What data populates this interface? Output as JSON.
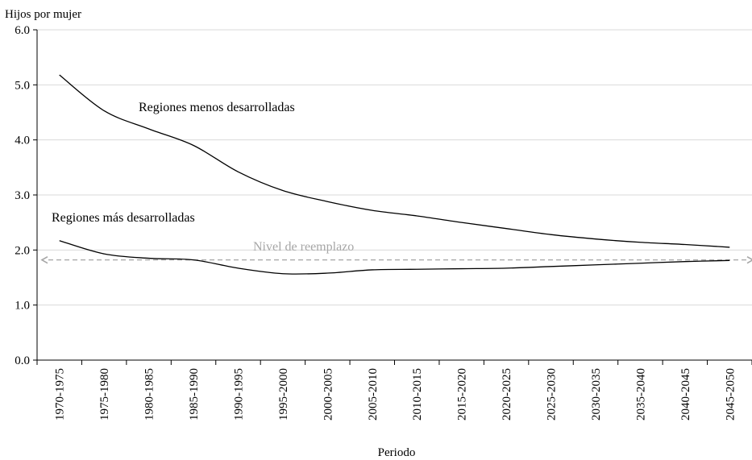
{
  "chart_data": {
    "type": "line",
    "ylabel": "Hijos por mujer",
    "xlabel": "Periodo",
    "ylim": [
      0,
      6
    ],
    "yticks": [
      "0.0",
      "1.0",
      "2.0",
      "3.0",
      "4.0",
      "5.0",
      "6.0"
    ],
    "grid": true,
    "categories": [
      "1970-1975",
      "1975-1980",
      "1980-1985",
      "1985-1990",
      "1990-1995",
      "1995-2000",
      "2000-2005",
      "2005-2010",
      "2010-2015",
      "2015-2020",
      "2020-2025",
      "2025-2030",
      "2030-2035",
      "2035-2040",
      "2040-2045",
      "2045-2050"
    ],
    "series": [
      {
        "name": "Regiones menos desarrolladas",
        "color": "#000000",
        "values": [
          5.18,
          4.53,
          4.2,
          3.9,
          3.42,
          3.08,
          2.88,
          2.72,
          2.62,
          2.5,
          2.39,
          2.28,
          2.2,
          2.14,
          2.1,
          2.05
        ]
      },
      {
        "name": "Regiones más desarrolladas",
        "color": "#000000",
        "values": [
          2.17,
          1.93,
          1.85,
          1.82,
          1.67,
          1.57,
          1.58,
          1.64,
          1.65,
          1.66,
          1.67,
          1.7,
          1.73,
          1.76,
          1.79,
          1.81
        ]
      }
    ],
    "reference_line": {
      "label": "Nivel de reemplazo",
      "value": 1.82,
      "color": "#a6a6a6"
    }
  }
}
